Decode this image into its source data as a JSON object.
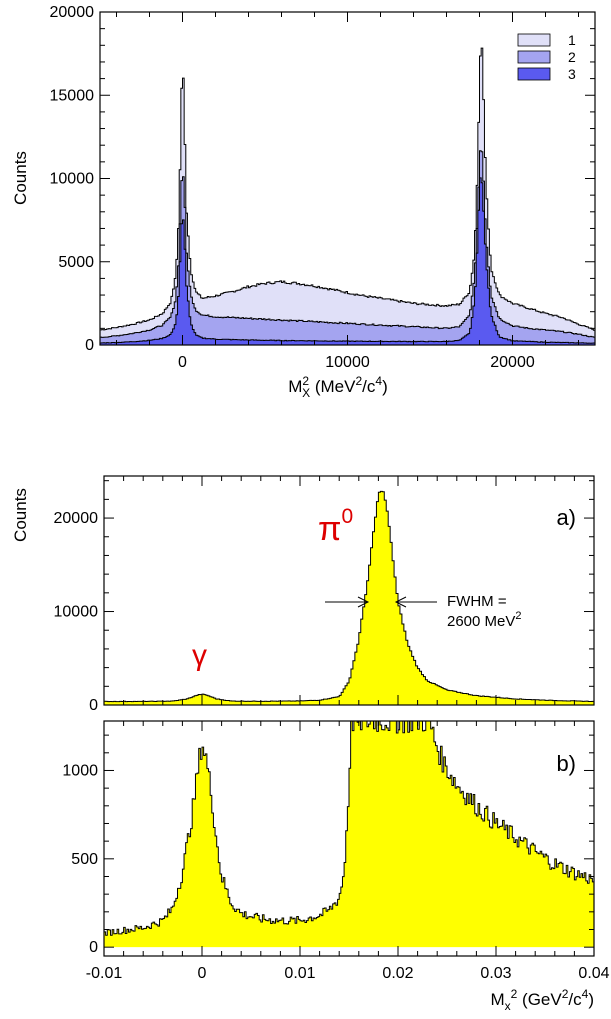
{
  "chart_data": [
    {
      "type": "area",
      "ylabel": "Counts",
      "xlabel_main": "M",
      "xlabel_sub": "X",
      "xlabel_sup": "2",
      "xlabel_unit_pre": " (MeV",
      "xlabel_unit_sup1": "2",
      "xlabel_unit_mid": "/c",
      "xlabel_unit_sup2": "4",
      "xlabel_unit_post": ")",
      "xlim": [
        -5000,
        25000
      ],
      "ylim": [
        0,
        20000
      ],
      "xticks": [
        0,
        10000,
        20000
      ],
      "xtick_labels": [
        "0",
        "10000",
        "20000"
      ],
      "yticks": [
        0,
        5000,
        10000,
        15000,
        20000
      ],
      "ytick_labels": [
        "0",
        "5000",
        "10000",
        "15000",
        "20000"
      ],
      "legend_position": "top-right",
      "series": [
        {
          "name": "1",
          "color": "#e0e0f8",
          "points": [
            [
              -5000,
              900
            ],
            [
              -4000,
              1050
            ],
            [
              -3000,
              1250
            ],
            [
              -2000,
              1500
            ],
            [
              -1200,
              1900
            ],
            [
              -700,
              2600
            ],
            [
              -400,
              4200
            ],
            [
              -200,
              8000
            ],
            [
              -100,
              13000
            ],
            [
              0,
              17900
            ],
            [
              100,
              14000
            ],
            [
              250,
              8000
            ],
            [
              500,
              4500
            ],
            [
              800,
              3200
            ],
            [
              1200,
              2800
            ],
            [
              2000,
              2950
            ],
            [
              3000,
              3200
            ],
            [
              4000,
              3500
            ],
            [
              5000,
              3700
            ],
            [
              6000,
              3800
            ],
            [
              7000,
              3700
            ],
            [
              8000,
              3550
            ],
            [
              9000,
              3350
            ],
            [
              10000,
              3150
            ],
            [
              11000,
              2950
            ],
            [
              12000,
              2800
            ],
            [
              13000,
              2650
            ],
            [
              14000,
              2500
            ],
            [
              15000,
              2420
            ],
            [
              16000,
              2350
            ],
            [
              16800,
              2450
            ],
            [
              17400,
              3200
            ],
            [
              17700,
              5500
            ],
            [
              17900,
              11000
            ],
            [
              18000,
              16000
            ],
            [
              18100,
              19000
            ],
            [
              18200,
              16500
            ],
            [
              18400,
              9500
            ],
            [
              18700,
              4600
            ],
            [
              19200,
              3000
            ],
            [
              20000,
              2500
            ],
            [
              21000,
              2200
            ],
            [
              22000,
              1900
            ],
            [
              23000,
              1650
            ],
            [
              24000,
              1250
            ],
            [
              25000,
              900
            ]
          ]
        },
        {
          "name": "2",
          "color": "#a4a4f0",
          "points": [
            [
              -5000,
              450
            ],
            [
              -4000,
              550
            ],
            [
              -3000,
              700
            ],
            [
              -2000,
              900
            ],
            [
              -1200,
              1200
            ],
            [
              -700,
              1700
            ],
            [
              -400,
              2800
            ],
            [
              -200,
              5500
            ],
            [
              -100,
              9000
            ],
            [
              0,
              10800
            ],
            [
              100,
              9500
            ],
            [
              250,
              5500
            ],
            [
              500,
              3000
            ],
            [
              800,
              2100
            ],
            [
              1200,
              1800
            ],
            [
              2000,
              1700
            ],
            [
              3000,
              1650
            ],
            [
              4000,
              1600
            ],
            [
              5000,
              1550
            ],
            [
              6000,
              1500
            ],
            [
              7000,
              1450
            ],
            [
              8000,
              1400
            ],
            [
              9000,
              1350
            ],
            [
              10000,
              1300
            ],
            [
              11000,
              1250
            ],
            [
              12000,
              1200
            ],
            [
              13000,
              1150
            ],
            [
              14000,
              1100
            ],
            [
              15000,
              1050
            ],
            [
              16000,
              1000
            ],
            [
              16800,
              1100
            ],
            [
              17400,
              1800
            ],
            [
              17700,
              4000
            ],
            [
              17900,
              8000
            ],
            [
              18000,
              11000
            ],
            [
              18100,
              12400
            ],
            [
              18200,
              11000
            ],
            [
              18400,
              6500
            ],
            [
              18700,
              3000
            ],
            [
              19200,
              1600
            ],
            [
              20000,
              1150
            ],
            [
              21000,
              1000
            ],
            [
              22000,
              900
            ],
            [
              23000,
              800
            ],
            [
              24000,
              650
            ],
            [
              25000,
              450
            ]
          ]
        },
        {
          "name": "3",
          "color": "#5a5af0",
          "points": [
            [
              -5000,
              120
            ],
            [
              -4000,
              150
            ],
            [
              -3000,
              200
            ],
            [
              -2000,
              280
            ],
            [
              -1200,
              400
            ],
            [
              -700,
              650
            ],
            [
              -400,
              1300
            ],
            [
              -200,
              3500
            ],
            [
              -100,
              6500
            ],
            [
              0,
              8100
            ],
            [
              100,
              6800
            ],
            [
              250,
              3500
            ],
            [
              500,
              1300
            ],
            [
              800,
              600
            ],
            [
              1200,
              420
            ],
            [
              2000,
              350
            ],
            [
              4000,
              300
            ],
            [
              6000,
              270
            ],
            [
              8000,
              250
            ],
            [
              10000,
              230
            ],
            [
              12000,
              220
            ],
            [
              14000,
              210
            ],
            [
              16000,
              210
            ],
            [
              16800,
              280
            ],
            [
              17400,
              700
            ],
            [
              17700,
              2600
            ],
            [
              17900,
              6500
            ],
            [
              18000,
              9500
            ],
            [
              18100,
              10500
            ],
            [
              18200,
              9200
            ],
            [
              18400,
              5000
            ],
            [
              18700,
              1800
            ],
            [
              19200,
              500
            ],
            [
              20000,
              250
            ],
            [
              22000,
              170
            ],
            [
              24000,
              130
            ],
            [
              25000,
              110
            ]
          ]
        }
      ]
    },
    {
      "type": "area",
      "panel_label": "a)",
      "ylabel": "Counts",
      "xlim": [
        -0.01,
        0.04
      ],
      "ylim": [
        0,
        24500
      ],
      "yticks": [
        0,
        10000,
        20000
      ],
      "ytick_labels": [
        "0",
        "10000",
        "20000"
      ],
      "fill_color": "#ffff00",
      "annotations": {
        "pi0_base": "π",
        "pi0_sup": "0",
        "gamma": "γ",
        "fwhm_line1": "FWHM =",
        "fwhm_line2_pre": "2600 MeV",
        "fwhm_line2_sup": "2"
      },
      "points": [
        [
          -0.01,
          380
        ],
        [
          -0.006,
          380
        ],
        [
          -0.003,
          420
        ],
        [
          -0.0015,
          650
        ],
        [
          -0.0005,
          1050
        ],
        [
          0,
          1150
        ],
        [
          0.0005,
          1050
        ],
        [
          0.0015,
          650
        ],
        [
          0.003,
          420
        ],
        [
          0.006,
          400
        ],
        [
          0.01,
          430
        ],
        [
          0.012,
          520
        ],
        [
          0.014,
          900
        ],
        [
          0.015,
          2500
        ],
        [
          0.016,
          7000
        ],
        [
          0.017,
          14000
        ],
        [
          0.0175,
          18500
        ],
        [
          0.018,
          22500
        ],
        [
          0.0183,
          23000
        ],
        [
          0.0186,
          22600
        ],
        [
          0.019,
          20000
        ],
        [
          0.0195,
          15500
        ],
        [
          0.02,
          11000
        ],
        [
          0.021,
          6500
        ],
        [
          0.022,
          4000
        ],
        [
          0.023,
          2600
        ],
        [
          0.025,
          1600
        ],
        [
          0.028,
          1000
        ],
        [
          0.032,
          650
        ],
        [
          0.036,
          480
        ],
        [
          0.04,
          380
        ]
      ]
    },
    {
      "type": "area",
      "panel_label": "b)",
      "xlabel_main": "M",
      "xlabel_sub": "x",
      "xlabel_sup": "2",
      "xlabel_unit_pre": " (GeV",
      "xlabel_unit_sup1": "2",
      "xlabel_unit_mid": "/c",
      "xlabel_unit_sup2": "4",
      "xlabel_unit_post": ")",
      "xlim": [
        -0.01,
        0.04
      ],
      "ylim": [
        -50,
        1280
      ],
      "xticks": [
        -0.01,
        0,
        0.01,
        0.02,
        0.03,
        0.04
      ],
      "xtick_labels": [
        "-0.01",
        "0",
        "0.01",
        "0.02",
        "0.03",
        "0.04"
      ],
      "yticks": [
        0,
        500,
        1000
      ],
      "ytick_labels": [
        "0",
        "500",
        "1000"
      ],
      "fill_color": "#ffff00",
      "points": [
        [
          -0.01,
          80
        ],
        [
          -0.008,
          95
        ],
        [
          -0.006,
          110
        ],
        [
          -0.004,
          150
        ],
        [
          -0.003,
          220
        ],
        [
          -0.002,
          420
        ],
        [
          -0.001,
          750
        ],
        [
          -0.0003,
          1050
        ],
        [
          0,
          1160
        ],
        [
          0.0004,
          1080
        ],
        [
          0.001,
          850
        ],
        [
          0.0015,
          600
        ],
        [
          0.002,
          400
        ],
        [
          0.003,
          250
        ],
        [
          0.004,
          190
        ],
        [
          0.006,
          160
        ],
        [
          0.008,
          150
        ],
        [
          0.01,
          150
        ],
        [
          0.011,
          165
        ],
        [
          0.012,
          180
        ],
        [
          0.013,
          210
        ],
        [
          0.014,
          280
        ],
        [
          0.0145,
          420
        ],
        [
          0.015,
          900
        ],
        [
          0.0152,
          1280
        ],
        [
          0.0232,
          1280
        ],
        [
          0.0237,
          1180
        ],
        [
          0.0245,
          1060
        ],
        [
          0.026,
          920
        ],
        [
          0.028,
          800
        ],
        [
          0.03,
          700
        ],
        [
          0.032,
          620
        ],
        [
          0.034,
          540
        ],
        [
          0.036,
          470
        ],
        [
          0.038,
          420
        ],
        [
          0.04,
          380
        ]
      ]
    }
  ]
}
